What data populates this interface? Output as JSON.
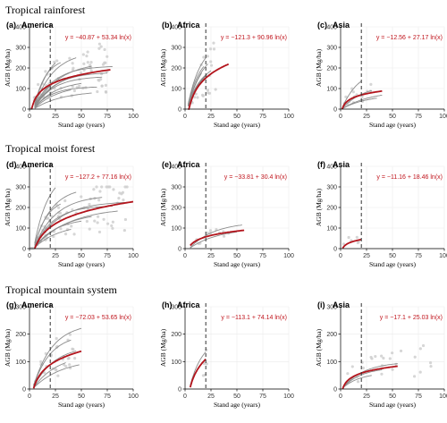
{
  "figure": {
    "sections": [
      {
        "title": "Tropical rainforest"
      },
      {
        "title": "Tropical moist forest"
      },
      {
        "title": "Tropical mountain system"
      }
    ]
  },
  "chart_data": [
    {
      "id": "a",
      "type": "line",
      "tag": "(a)",
      "region": "America",
      "section": "Tropical rainforest",
      "xlabel": "Stand age (years)",
      "ylabel": "AGB (Mg/ha)",
      "xlim": [
        0,
        100
      ],
      "ylim": [
        0,
        400
      ],
      "xticks": [
        0,
        25,
        50,
        75,
        100
      ],
      "yticks": [
        0,
        100,
        200,
        300,
        400
      ],
      "reference_line_x": 20,
      "equation": "y = −40.87 + 53.34 ln(x)",
      "fit": {
        "a": -40.87,
        "b": 53.34,
        "x_range": [
          2,
          78
        ]
      },
      "site_curves": [
        [
          210,
          0.9,
          5,
          80
        ],
        [
          180,
          0.85,
          5,
          75
        ],
        [
          230,
          0.7,
          5,
          60
        ],
        [
          190,
          0.75,
          5,
          55
        ],
        [
          160,
          0.9,
          5,
          70
        ],
        [
          140,
          0.8,
          5,
          50
        ],
        [
          120,
          0.7,
          5,
          40
        ],
        [
          170,
          1.2,
          5,
          35
        ],
        [
          110,
          1.0,
          5,
          65
        ],
        [
          280,
          0.9,
          5,
          45
        ],
        [
          250,
          1.5,
          5,
          30
        ],
        [
          90,
          0.6,
          5,
          60
        ],
        [
          300,
          1.1,
          5,
          25
        ]
      ],
      "points": {
        "count": 70,
        "x_range": [
          1,
          75
        ],
        "y_max": 360
      }
    },
    {
      "id": "b",
      "type": "line",
      "tag": "(b)",
      "region": "Africa",
      "section": "Tropical rainforest",
      "xlabel": "Stand age (years)",
      "ylabel": "AGB (Mg/ha)",
      "xlim": [
        0,
        100
      ],
      "ylim": [
        0,
        400
      ],
      "xticks": [
        0,
        25,
        50,
        75,
        100
      ],
      "yticks": [
        0,
        100,
        200,
        300,
        400
      ],
      "reference_line_x": 20,
      "equation": "y = −121.3 + 90.96 ln(x)",
      "fit": {
        "a": -121.3,
        "b": 90.96,
        "x_range": [
          3,
          42
        ]
      },
      "site_curves": [
        [
          330,
          1.3,
          3,
          20
        ],
        [
          300,
          1.1,
          3,
          22
        ],
        [
          280,
          1.4,
          3,
          18
        ],
        [
          250,
          1.0,
          3,
          25
        ],
        [
          230,
          1.2,
          3,
          19
        ],
        [
          260,
          0.9,
          3,
          21
        ],
        [
          200,
          1.5,
          3,
          17
        ],
        [
          310,
          1.0,
          3,
          16
        ]
      ],
      "points": {
        "count": 25,
        "x_range": [
          3,
          30
        ],
        "y_max": 330
      }
    },
    {
      "id": "c",
      "type": "line",
      "tag": "(c)",
      "region": "Asia",
      "section": "Tropical rainforest",
      "xlabel": "Stand age (years)",
      "ylabel": "AGB (Mg/ha)",
      "xlim": [
        0,
        100
      ],
      "ylim": [
        0,
        400
      ],
      "xticks": [
        0,
        25,
        50,
        75,
        100
      ],
      "yticks": [
        0,
        100,
        200,
        300,
        400
      ],
      "reference_line_x": 20,
      "equation": "y = −12.56 + 27.17 ln(x)",
      "fit": {
        "a": -12.56,
        "b": 27.17,
        "x_range": [
          1.5,
          40
        ]
      },
      "site_curves": [
        [
          200,
          1.0,
          2,
          20
        ],
        [
          120,
          0.8,
          2,
          30
        ],
        [
          90,
          0.6,
          2,
          40
        ],
        [
          70,
          0.7,
          2,
          35
        ]
      ],
      "points": {
        "count": 15,
        "x_range": [
          2,
          35
        ],
        "y_max": 120
      }
    },
    {
      "id": "d",
      "type": "line",
      "tag": "(d)",
      "region": "America",
      "section": "Tropical moist forest",
      "xlabel": "Stand age (years)",
      "ylabel": "AGB (Mg/ha)",
      "xlim": [
        0,
        100
      ],
      "ylim": [
        0,
        400
      ],
      "xticks": [
        0,
        25,
        50,
        75,
        100
      ],
      "yticks": [
        0,
        100,
        200,
        300,
        400
      ],
      "reference_line_x": 20,
      "equation": "y = −127.2 + 77.16 ln(x)",
      "fit": {
        "a": -127.2,
        "b": 77.16,
        "x_range": [
          5,
          100
        ]
      },
      "site_curves": [
        [
          380,
          1.2,
          5,
          25
        ],
        [
          300,
          1.0,
          5,
          45
        ],
        [
          260,
          0.8,
          5,
          70
        ],
        [
          230,
          0.7,
          5,
          95
        ],
        [
          210,
          0.9,
          5,
          80
        ],
        [
          180,
          0.6,
          5,
          60
        ],
        [
          150,
          0.8,
          5,
          50
        ],
        [
          120,
          0.7,
          5,
          40
        ],
        [
          250,
          1.3,
          5,
          30
        ],
        [
          200,
          0.5,
          5,
          85
        ]
      ],
      "points": {
        "count": 80,
        "x_range": [
          1,
          95
        ],
        "y_max": 300
      }
    },
    {
      "id": "e",
      "type": "line",
      "tag": "(e)",
      "region": "Africa",
      "section": "Tropical moist forest",
      "xlabel": "Stand age (years)",
      "ylabel": "AGB (Mg/ha)",
      "xlim": [
        0,
        100
      ],
      "ylim": [
        0,
        400
      ],
      "xticks": [
        0,
        25,
        50,
        75,
        100
      ],
      "yticks": [
        0,
        100,
        200,
        300,
        400
      ],
      "reference_line_x": 20,
      "equation": "y = −33.81 + 30.4 ln(x)",
      "fit": {
        "a": -33.81,
        "b": 30.4,
        "x_range": [
          5,
          57
        ]
      },
      "site_curves": [
        [
          130,
          0.7,
          5,
          55
        ],
        [
          100,
          0.6,
          5,
          50
        ]
      ],
      "points": {
        "count": 12,
        "x_range": [
          5,
          55
        ],
        "y_max": 130
      }
    },
    {
      "id": "f",
      "type": "line",
      "tag": "(f)",
      "region": "Asia",
      "section": "Tropical moist forest",
      "xlabel": "Stand age (years)",
      "ylabel": "AGB (Mg/ha)",
      "xlim": [
        0,
        100
      ],
      "ylim": [
        0,
        400
      ],
      "xticks": [
        0,
        25,
        50,
        75,
        100
      ],
      "yticks": [
        0,
        100,
        200,
        300,
        400
      ],
      "reference_line_x": 20,
      "equation": "y = −11.16 + 18.46 ln(x)",
      "fit": {
        "a": -11.16,
        "b": 18.46,
        "x_range": [
          2,
          20
        ]
      },
      "site_curves": [],
      "points": {
        "count": 6,
        "x_range": [
          3,
          20
        ],
        "y_max": 55
      }
    },
    {
      "id": "g",
      "type": "line",
      "tag": "(g)",
      "region": "America",
      "section": "Tropical mountain system",
      "xlabel": "Stand age (years)",
      "ylabel": "AGB (Mg/ha)",
      "xlim": [
        0,
        100
      ],
      "ylim": [
        0,
        300
      ],
      "xticks": [
        0,
        25,
        50,
        75,
        100
      ],
      "yticks": [
        0,
        100,
        200,
        300
      ],
      "reference_line_x": 20,
      "equation": "y = −72.03 + 53.65 ln(x)",
      "fit": {
        "a": -72.03,
        "b": 53.65,
        "x_range": [
          4,
          50
        ]
      },
      "site_curves": [
        [
          240,
          0.9,
          4,
          50
        ],
        [
          200,
          1.0,
          4,
          40
        ],
        [
          160,
          0.8,
          4,
          45
        ],
        [
          130,
          0.7,
          4,
          35
        ],
        [
          110,
          0.6,
          4,
          48
        ]
      ],
      "points": {
        "count": 30,
        "x_range": [
          3,
          45
        ],
        "y_max": 230
      }
    },
    {
      "id": "h",
      "type": "line",
      "tag": "(h)",
      "region": "Africa",
      "section": "Tropical mountain system",
      "xlabel": "Stand age (years)",
      "ylabel": "AGB (Mg/ha)",
      "xlim": [
        0,
        100
      ],
      "ylim": [
        0,
        300
      ],
      "xticks": [
        0,
        25,
        50,
        75,
        100
      ],
      "yticks": [
        0,
        100,
        200,
        300
      ],
      "reference_line_x": 20,
      "equation": "y = −113.1 + 74.14 ln(x)",
      "fit": {
        "a": -113.1,
        "b": 74.14,
        "x_range": [
          5,
          20
        ]
      },
      "site_curves": [
        [
          190,
          1.3,
          5,
          20
        ]
      ],
      "points": {
        "count": 5,
        "x_range": [
          5,
          30
        ],
        "y_max": 220
      }
    },
    {
      "id": "i",
      "type": "line",
      "tag": "(i)",
      "region": "Asia",
      "section": "Tropical mountain system",
      "xlabel": "Stand age (years)",
      "ylabel": "AGB (Mg/ha)",
      "xlim": [
        0,
        100
      ],
      "ylim": [
        0,
        300
      ],
      "xticks": [
        0,
        25,
        50,
        75,
        100
      ],
      "yticks": [
        0,
        100,
        200,
        300
      ],
      "reference_line_x": 20,
      "equation": "y = −17.1 + 25.03 ln(x)",
      "fit": {
        "a": -17.1,
        "b": 25.03,
        "x_range": [
          2,
          55
        ]
      },
      "site_curves": [
        [
          100,
          0.8,
          2,
          55
        ],
        [
          80,
          0.9,
          2,
          40
        ],
        [
          60,
          1.0,
          2,
          30
        ]
      ],
      "points": {
        "count": 25,
        "x_range": [
          2,
          90
        ],
        "y_max": 160
      }
    }
  ]
}
